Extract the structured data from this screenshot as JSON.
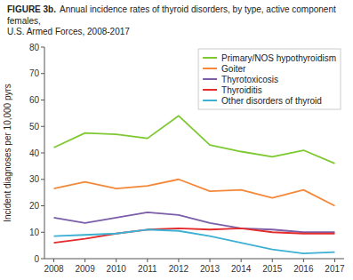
{
  "chart_data": {
    "type": "line",
    "title": "FIGURE 3b.",
    "subtitle": "Annual incidence rates of thyroid disorders, by type, active component females,\nU.S. Armed Forces, 2008-2017",
    "x": [
      2008,
      2009,
      2010,
      2011,
      2012,
      2013,
      2014,
      2015,
      2016,
      2017
    ],
    "series": [
      {
        "name": "Primary/NOS hypothyroidism",
        "color": "#7ec832",
        "values": [
          42.0,
          47.5,
          47.0,
          45.5,
          54.0,
          43.0,
          40.5,
          38.5,
          41.0,
          36.0
        ]
      },
      {
        "name": "Goiter",
        "color": "#f4883a",
        "values": [
          26.5,
          29.0,
          26.5,
          27.5,
          30.0,
          25.5,
          26.0,
          23.0,
          26.0,
          20.0
        ]
      },
      {
        "name": "Thyrotoxicosis",
        "color": "#7b5ea7",
        "values": [
          15.5,
          13.5,
          15.5,
          17.5,
          16.5,
          13.5,
          11.5,
          11.0,
          10.0,
          10.0
        ]
      },
      {
        "name": "Thyroiditis",
        "color": "#e32b2b",
        "values": [
          6.0,
          7.5,
          9.5,
          11.0,
          11.5,
          11.0,
          11.5,
          10.0,
          9.5,
          9.5
        ]
      },
      {
        "name": "Other disorders of thyroid",
        "color": "#3db0d4",
        "values": [
          8.5,
          9.0,
          9.5,
          11.0,
          10.5,
          8.5,
          6.0,
          3.5,
          2.0,
          2.5
        ]
      }
    ],
    "y_label": "Incident diagnoses per 10,000 pyrs",
    "xlim": [
      2007.7,
      2017.3
    ],
    "xticks": [
      2008,
      2009,
      2010,
      2011,
      2012,
      2013,
      2014,
      2015,
      2016,
      2017
    ],
    "ylim": [
      0,
      80
    ],
    "yticks": [
      0,
      10,
      20,
      30,
      40,
      50,
      60,
      70,
      80
    ],
    "grid": false,
    "legend": "upper right"
  }
}
